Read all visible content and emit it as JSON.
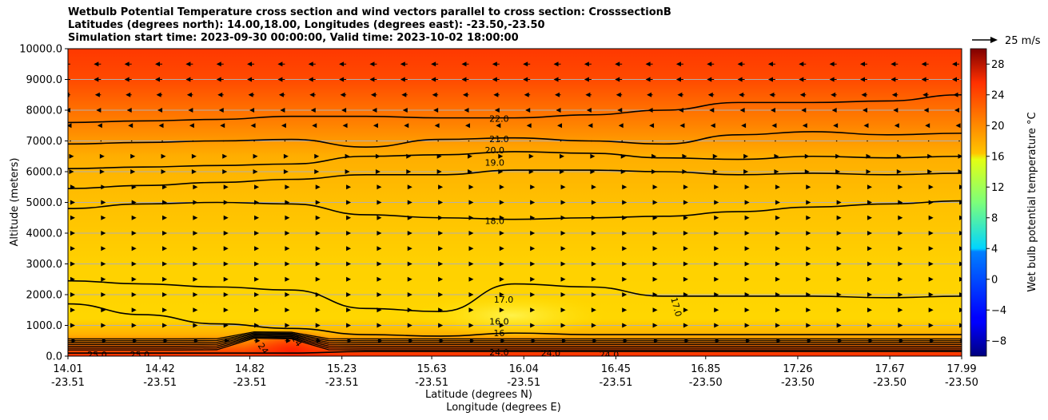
{
  "chart_data": {
    "type": "contour",
    "title_lines": [
      "Wetbulb Potential Temperature cross section and wind vectors parallel to cross section: CrosssectionB",
      "Latitudes (degrees north): 14.00,18.00, Longitudes (degrees east): -23.50,-23.50",
      "Simulation start time: 2023-09-30 00:00:00, Valid time: 2023-10-02 18:00:00"
    ],
    "xlabel": "Latitude (degrees N)",
    "xlabel2": "Longitude (degrees E)",
    "ylabel": "Altitude (meters)",
    "ylim": [
      0,
      10000
    ],
    "yticks": [
      "0.0",
      "1000.0",
      "2000.0",
      "3000.0",
      "4000.0",
      "5000.0",
      "6000.0",
      "7000.0",
      "8000.0",
      "9000.0",
      "10000.0"
    ],
    "xlim": [
      14.01,
      17.99
    ],
    "xticks": [
      {
        "lat": "14.01",
        "lon": "-23.51"
      },
      {
        "lat": "14.42",
        "lon": "-23.51"
      },
      {
        "lat": "14.82",
        "lon": "-23.51"
      },
      {
        "lat": "15.23",
        "lon": "-23.51"
      },
      {
        "lat": "15.63",
        "lon": "-23.51"
      },
      {
        "lat": "16.04",
        "lon": "-23.51"
      },
      {
        "lat": "16.45",
        "lon": "-23.51"
      },
      {
        "lat": "16.85",
        "lon": "-23.50"
      },
      {
        "lat": "17.26",
        "lon": "-23.50"
      },
      {
        "lat": "17.67",
        "lon": "-23.50"
      },
      {
        "lat": "17.99",
        "lon": "-23.50"
      }
    ],
    "grid": "horizontal",
    "colorbar": {
      "label": "Wet bulb potential temperature $^\\circ$C",
      "label_display": "Wet bulb potential temperature °C",
      "range": [
        -10,
        30
      ],
      "ticks": [
        "−8",
        "−4",
        "0",
        "4",
        "8",
        "12",
        "16",
        "20",
        "24",
        "28"
      ],
      "colormap": "jet"
    },
    "quiver_key": "25 m/s",
    "contour_levels": [
      {
        "value": 22.0,
        "altitude_m": [
          7600,
          7650,
          7700,
          7800,
          7800,
          7750,
          7750,
          7850,
          8000,
          8250,
          8250,
          8300,
          8500
        ]
      },
      {
        "value": 21.0,
        "altitude_m": [
          6900,
          6950,
          7000,
          7050,
          6800,
          7050,
          7100,
          7000,
          6900,
          7200,
          7300,
          7200,
          7250
        ]
      },
      {
        "value": 20.0,
        "altitude_m": [
          6100,
          6150,
          6200,
          6250,
          6500,
          6550,
          6650,
          6600,
          6450,
          6400,
          6500,
          6450,
          6500
        ]
      },
      {
        "value": 19.0,
        "altitude_m": [
          5450,
          5550,
          5650,
          5750,
          5900,
          5900,
          6050,
          6050,
          6000,
          5900,
          5950,
          5900,
          5950
        ]
      },
      {
        "value": 18.0,
        "altitude_m": [
          4800,
          4950,
          5000,
          4950,
          4600,
          4500,
          4450,
          4500,
          4550,
          4700,
          4850,
          4950,
          5050
        ]
      },
      {
        "value": 17.0,
        "altitude_m": [
          2450,
          2350,
          2250,
          2150,
          1550,
          1450,
          2350,
          2250,
          1950,
          1950,
          1950,
          1900,
          1950
        ]
      },
      {
        "value": 16.0,
        "altitude_m": [
          1700,
          1350,
          1050,
          900,
          700,
          650,
          750,
          700,
          700,
          700,
          700,
          700,
          700
        ]
      },
      {
        "value": 25.0,
        "altitude_m": [
          100,
          100,
          100,
          100,
          150,
          150,
          150,
          150,
          150,
          150,
          150,
          150,
          150
        ]
      }
    ],
    "contour_labels": [
      {
        "text": "22.0",
        "lat": 15.93,
        "alt": 7730
      },
      {
        "text": "21.0",
        "lat": 15.93,
        "alt": 7070
      },
      {
        "text": "20.0",
        "lat": 15.91,
        "alt": 6700
      },
      {
        "text": "19.0",
        "lat": 15.91,
        "alt": 6300
      },
      {
        "text": "18.0",
        "lat": 15.91,
        "alt": 4400
      },
      {
        "text": "17.0",
        "lat": 15.95,
        "alt": 1850
      },
      {
        "text": "17.0",
        "lat": 16.72,
        "alt": 1600,
        "rotate": 75
      },
      {
        "text": "16.0",
        "lat": 15.93,
        "alt": 1130
      },
      {
        "text": "16",
        "lat": 15.93,
        "alt": 750
      },
      {
        "text": "24.0",
        "lat": 15.93,
        "alt": 130
      },
      {
        "text": "24.0",
        "lat": 16.16,
        "alt": 100
      },
      {
        "text": "24.0",
        "lat": 16.42,
        "alt": 50
      },
      {
        "text": "25.0",
        "lat": 14.14,
        "alt": 50
      },
      {
        "text": "25.0",
        "lat": 14.33,
        "alt": 50
      },
      {
        "text": "24",
        "lat": 14.88,
        "alt": 250,
        "rotate": 55
      },
      {
        "text": "24",
        "lat": 15.03,
        "alt": 500,
        "rotate": 55
      }
    ],
    "wind_vectors": {
      "rows_alt_m": [
        9500,
        9000,
        8500,
        8000,
        7500,
        7000,
        6500,
        6000,
        5500,
        5000,
        4500,
        4000,
        3500,
        3000,
        2500,
        2000,
        1500,
        1000,
        500
      ],
      "u_component_m_s": [
        -4,
        -4,
        -3,
        -2,
        -1,
        0,
        1,
        1,
        2,
        2,
        2,
        2,
        2,
        2,
        2,
        2,
        2,
        2,
        3
      ]
    }
  },
  "colors": {
    "contour": "#000000",
    "grid": "#b0b0b0"
  }
}
